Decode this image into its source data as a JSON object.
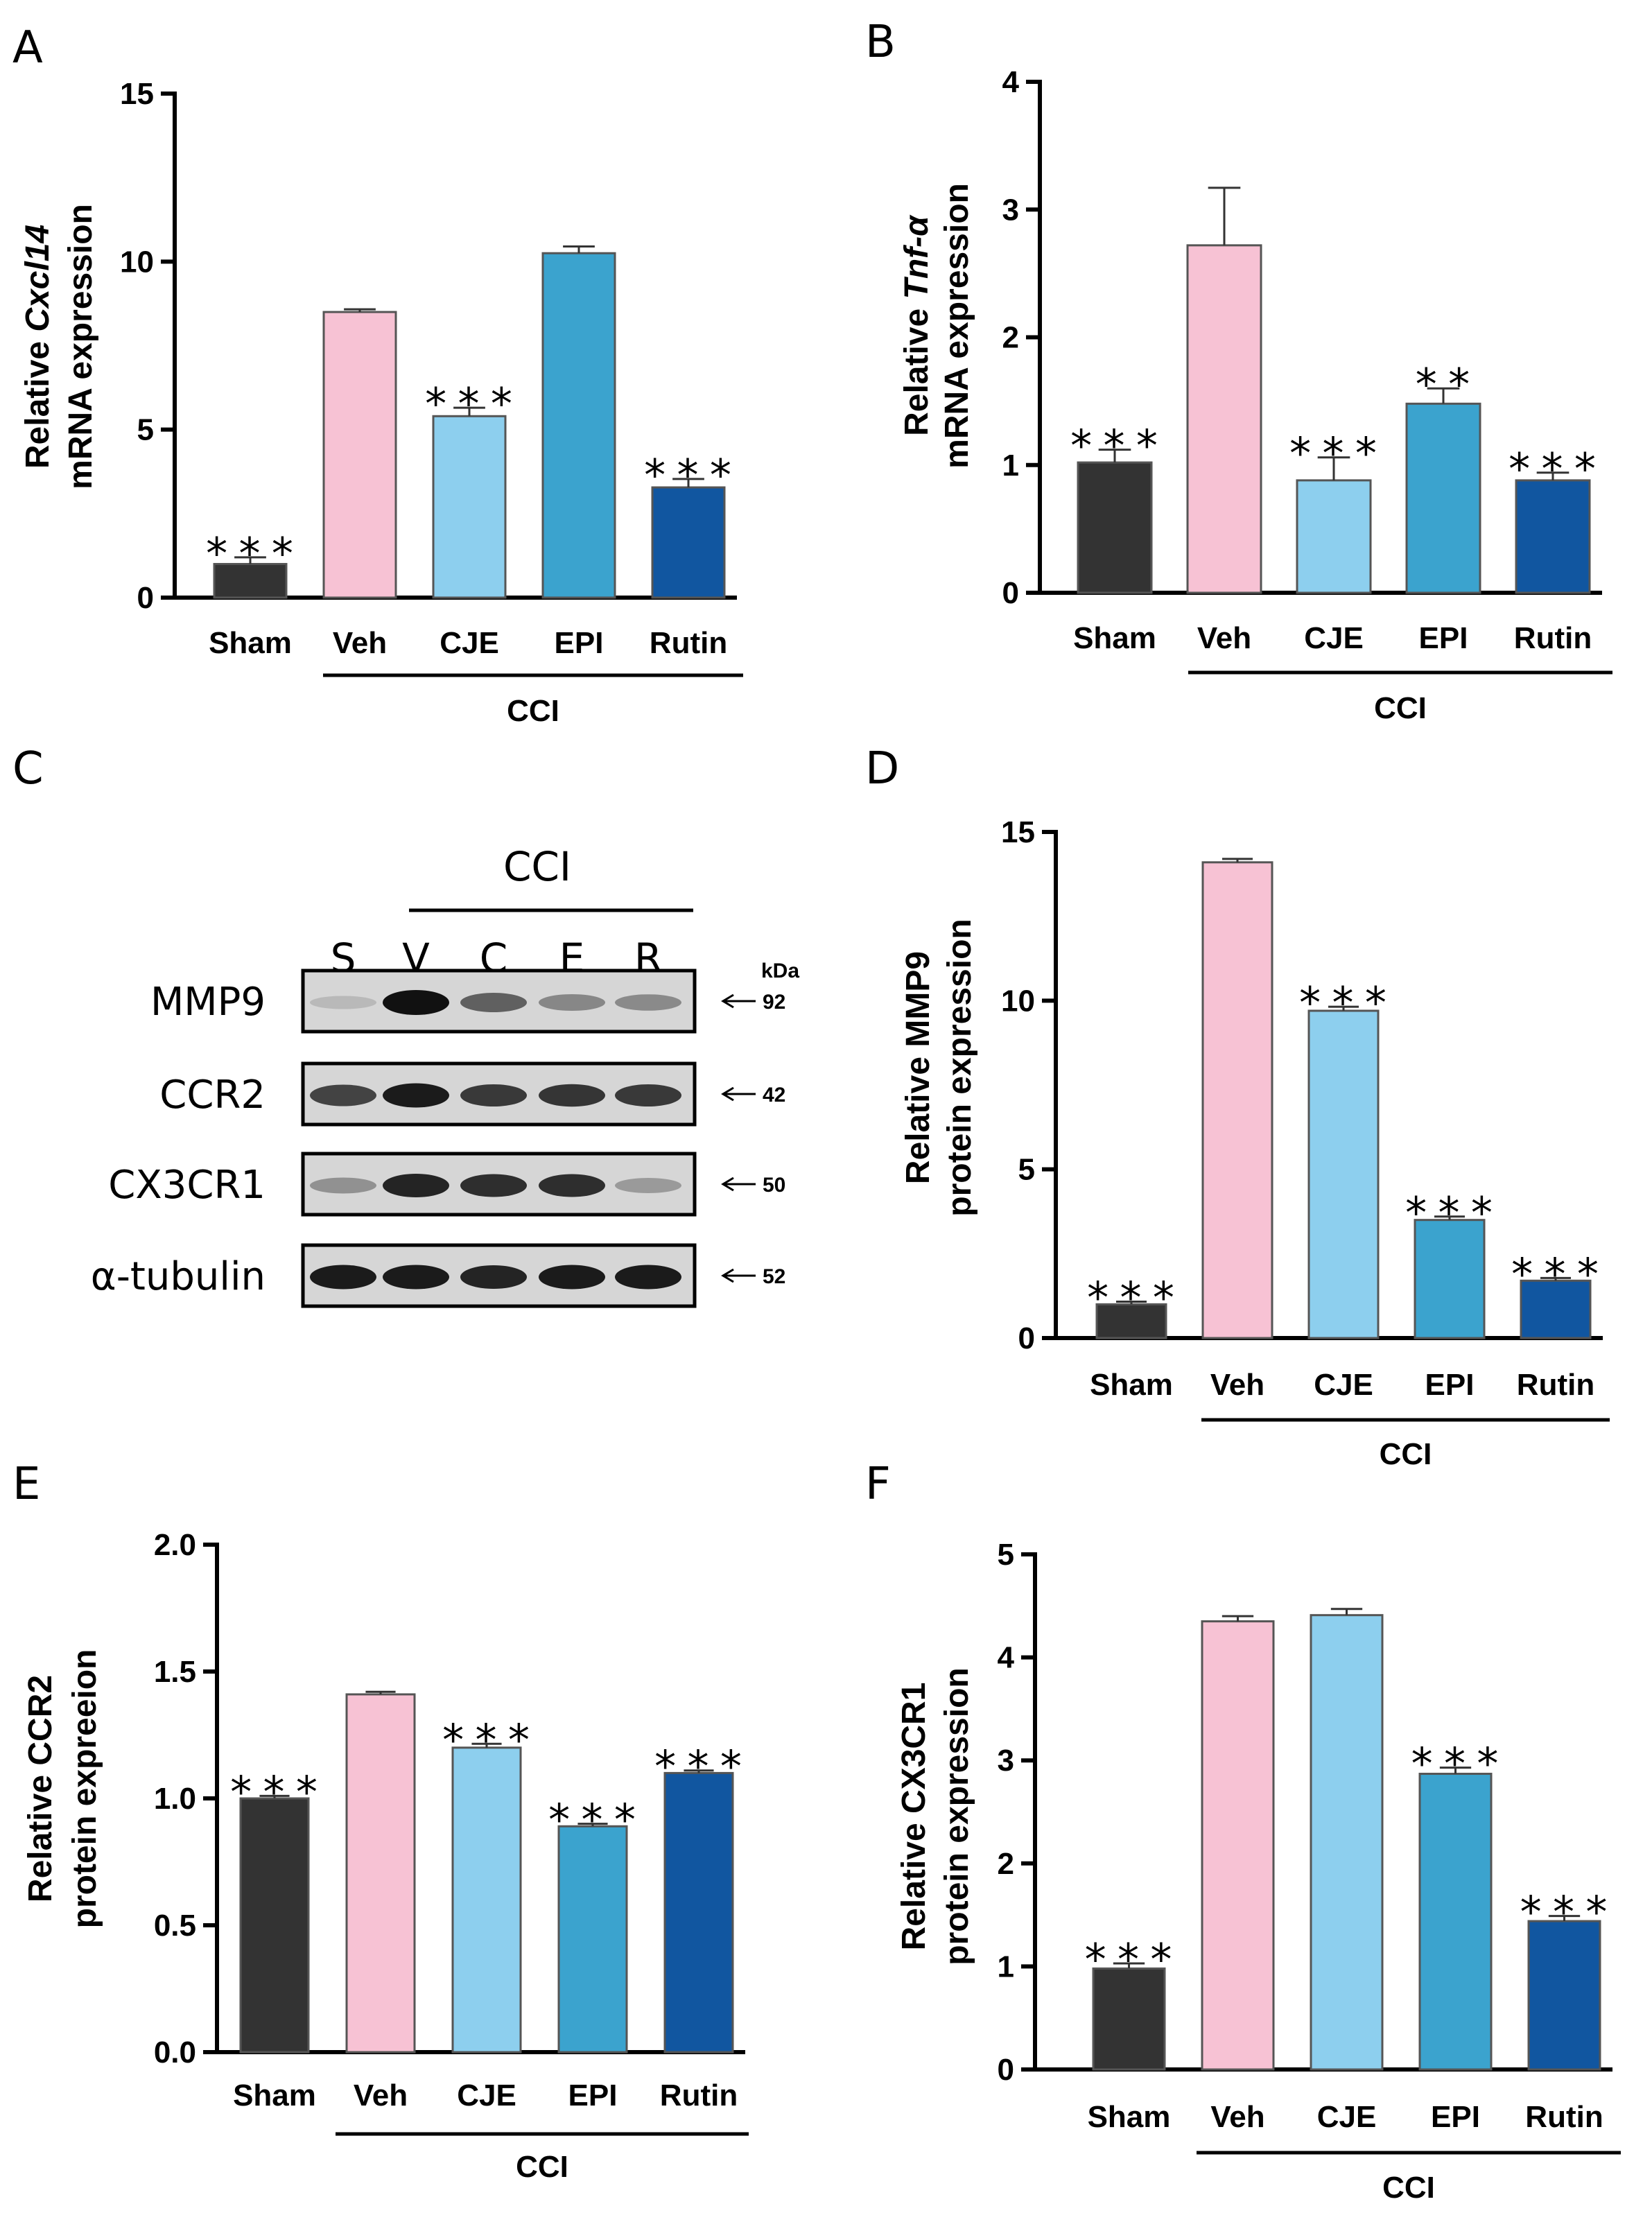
{
  "colors": {
    "Sham": "#333333",
    "Veh": "#F7C2D4",
    "CJE": "#8DCFEE",
    "EPI": "#3BA3CE",
    "Rutin": "#1156A0"
  },
  "chart_data": [
    {
      "panel": "A",
      "type": "bar",
      "ylabel_pre": "Relative ",
      "ylabel_italic": "Cxcl14",
      "ylabel_line2": "mRNA expression",
      "ylim": [
        0,
        15
      ],
      "yticks": [
        "0",
        "5",
        "10",
        "15"
      ],
      "ytick_values": [
        0,
        5,
        10,
        15
      ],
      "categories": [
        "Sham",
        "Veh",
        "CJE",
        "EPI",
        "Rutin"
      ],
      "values": [
        1.0,
        8.5,
        5.4,
        10.25,
        3.28
      ],
      "errors": [
        0.2,
        0.08,
        0.25,
        0.2,
        0.25
      ],
      "significance": [
        "***",
        "",
        "***",
        "",
        "***"
      ],
      "group_label": "CCI"
    },
    {
      "panel": "B",
      "type": "bar",
      "ylabel_pre": "Relative ",
      "ylabel_italic": "Tnf-α",
      "ylabel_line2": "mRNA expression",
      "ylim": [
        0,
        4
      ],
      "yticks": [
        "0",
        "1",
        "2",
        "3",
        "4"
      ],
      "ytick_values": [
        0,
        1,
        2,
        3,
        4
      ],
      "categories": [
        "Sham",
        "Veh",
        "CJE",
        "EPI",
        "Rutin"
      ],
      "values": [
        1.02,
        2.72,
        0.88,
        1.48,
        0.88
      ],
      "errors": [
        0.1,
        0.45,
        0.18,
        0.12,
        0.06
      ],
      "significance": [
        "***",
        "",
        "***",
        "**",
        "***"
      ],
      "group_label": "CCI"
    },
    {
      "panel": "D",
      "type": "bar",
      "ylabel_pre": "Relative MMP9",
      "ylabel_italic": "",
      "ylabel_line2": "protein expression",
      "ylim": [
        0,
        15
      ],
      "yticks": [
        "0",
        "5",
        "10",
        "15"
      ],
      "ytick_values": [
        0,
        5,
        10,
        15
      ],
      "categories": [
        "Sham",
        "Veh",
        "CJE",
        "EPI",
        "Rutin"
      ],
      "values": [
        1.0,
        14.1,
        9.7,
        3.5,
        1.7
      ],
      "errors": [
        0.08,
        0.1,
        0.12,
        0.1,
        0.08
      ],
      "significance": [
        "***",
        "",
        "***",
        "***",
        "***"
      ],
      "group_label": "CCI"
    },
    {
      "panel": "E",
      "type": "bar",
      "ylabel_pre": "Relative CCR2",
      "ylabel_italic": "",
      "ylabel_line2": "protein expreeion",
      "ylim": [
        0,
        2.0
      ],
      "yticks": [
        "0.0",
        "0.5",
        "1.0",
        "1.5",
        "2.0"
      ],
      "ytick_values": [
        0,
        0.5,
        1.0,
        1.5,
        2.0
      ],
      "categories": [
        "Sham",
        "Veh",
        "CJE",
        "EPI",
        "Rutin"
      ],
      "values": [
        1.0,
        1.41,
        1.2,
        0.89,
        1.1
      ],
      "errors": [
        0.01,
        0.01,
        0.015,
        0.01,
        0.01
      ],
      "significance": [
        "***",
        "",
        "***",
        "***",
        "***"
      ],
      "group_label": "CCI"
    },
    {
      "panel": "F",
      "type": "bar",
      "ylabel_pre": "Relative CX3CR1",
      "ylabel_italic": "",
      "ylabel_line2": "protein expression",
      "ylim": [
        0,
        5
      ],
      "yticks": [
        "0",
        "1",
        "2",
        "3",
        "4",
        "5"
      ],
      "ytick_values": [
        0,
        1,
        2,
        3,
        4,
        5
      ],
      "categories": [
        "Sham",
        "Veh",
        "CJE",
        "EPI",
        "Rutin"
      ],
      "values": [
        0.98,
        4.35,
        4.41,
        2.87,
        1.44
      ],
      "errors": [
        0.05,
        0.05,
        0.06,
        0.06,
        0.05
      ],
      "significance": [
        "***",
        "",
        "",
        "***",
        "***"
      ],
      "group_label": "CCI"
    }
  ],
  "blot": {
    "panel": "C",
    "group_label": "CCI",
    "lanes": [
      "S",
      "V",
      "C",
      "E",
      "R"
    ],
    "kda_label": "kDa",
    "rows": [
      {
        "name": "MMP9",
        "kda": "92",
        "intensity": [
          0.15,
          1.0,
          0.6,
          0.4,
          0.38
        ]
      },
      {
        "name": "CCR2",
        "kda": "42",
        "intensity": [
          0.75,
          0.95,
          0.8,
          0.82,
          0.8
        ]
      },
      {
        "name": "CX3CR1",
        "kda": "50",
        "intensity": [
          0.35,
          0.9,
          0.85,
          0.85,
          0.3
        ]
      },
      {
        "name": "α-tubulin",
        "kda": "52",
        "intensity": [
          0.95,
          0.95,
          0.9,
          0.95,
          0.95
        ]
      }
    ]
  }
}
